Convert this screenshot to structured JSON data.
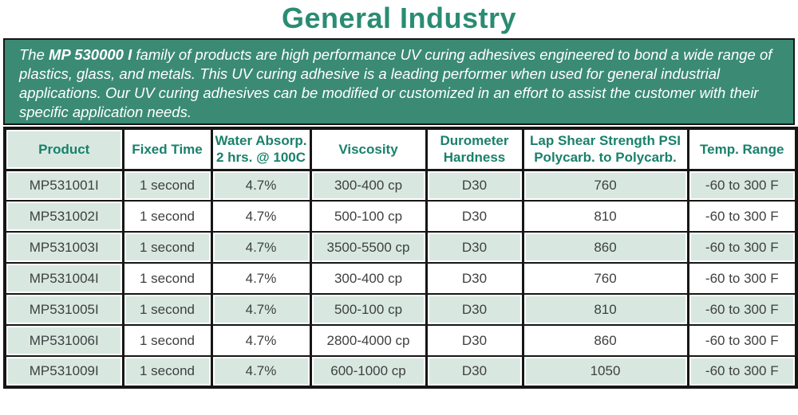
{
  "page": {
    "title": "General Industry"
  },
  "intro": {
    "lead": "The ",
    "product_family": "MP 530000 I",
    "body": " family of products are high performance UV curing adhesives engineered to bond a wide range of plastics, glass, and metals. This UV curing adhesive is a leading performer when used for general industrial applications. Our UV curing adhesives can be modified or customized in an effort to assist the customer with their specific application needs."
  },
  "table": {
    "columns": [
      {
        "label": "Product"
      },
      {
        "label": "Fixed Time"
      },
      {
        "label": "Water Absorp.\n2 hrs. @ 100C"
      },
      {
        "label": "Viscosity"
      },
      {
        "label": "Durometer\nHardness"
      },
      {
        "label": "Lap Shear Strength PSI\nPolycarb. to Polycarb."
      },
      {
        "label": "Temp. Range"
      }
    ],
    "rows": [
      {
        "tinted": true,
        "cells": [
          "MP531001I",
          "1 second",
          "4.7%",
          "300-400 cp",
          "D30",
          "760",
          "-60 to 300 F"
        ]
      },
      {
        "tinted": false,
        "cells": [
          "MP531002I",
          "1 second",
          "4.7%",
          "500-100 cp",
          "D30",
          "810",
          "-60 to 300 F"
        ]
      },
      {
        "tinted": true,
        "cells": [
          "MP531003I",
          "1 second",
          "4.7%",
          "3500-5500 cp",
          "D30",
          "860",
          "-60 to 300 F"
        ]
      },
      {
        "tinted": false,
        "cells": [
          "MP531004I",
          "1 second",
          "4.7%",
          "300-400 cp",
          "D30",
          "760",
          "-60 to 300 F"
        ]
      },
      {
        "tinted": true,
        "cells": [
          "MP531005I",
          "1 second",
          "4.7%",
          "500-100 cp",
          "D30",
          "810",
          "-60 to 300 F"
        ]
      },
      {
        "tinted": false,
        "cells": [
          "MP531006I",
          "1 second",
          "4.7%",
          "2800-4000 cp",
          "D30",
          "860",
          "-60 to 300 F"
        ]
      },
      {
        "tinted": true,
        "cells": [
          "MP531009I",
          "1 second",
          "4.7%",
          "600-1000 cp",
          "D30",
          "1050",
          "-60 to 300 F"
        ]
      }
    ]
  },
  "colors": {
    "title_teal": "#2a8c72",
    "intro_background": "#3b8a74",
    "header_text_teal": "#19816c",
    "tinted_cell_green": "#d8e8e1",
    "grid_black": "#161616",
    "cell_text_gray": "#3e3f41"
  }
}
